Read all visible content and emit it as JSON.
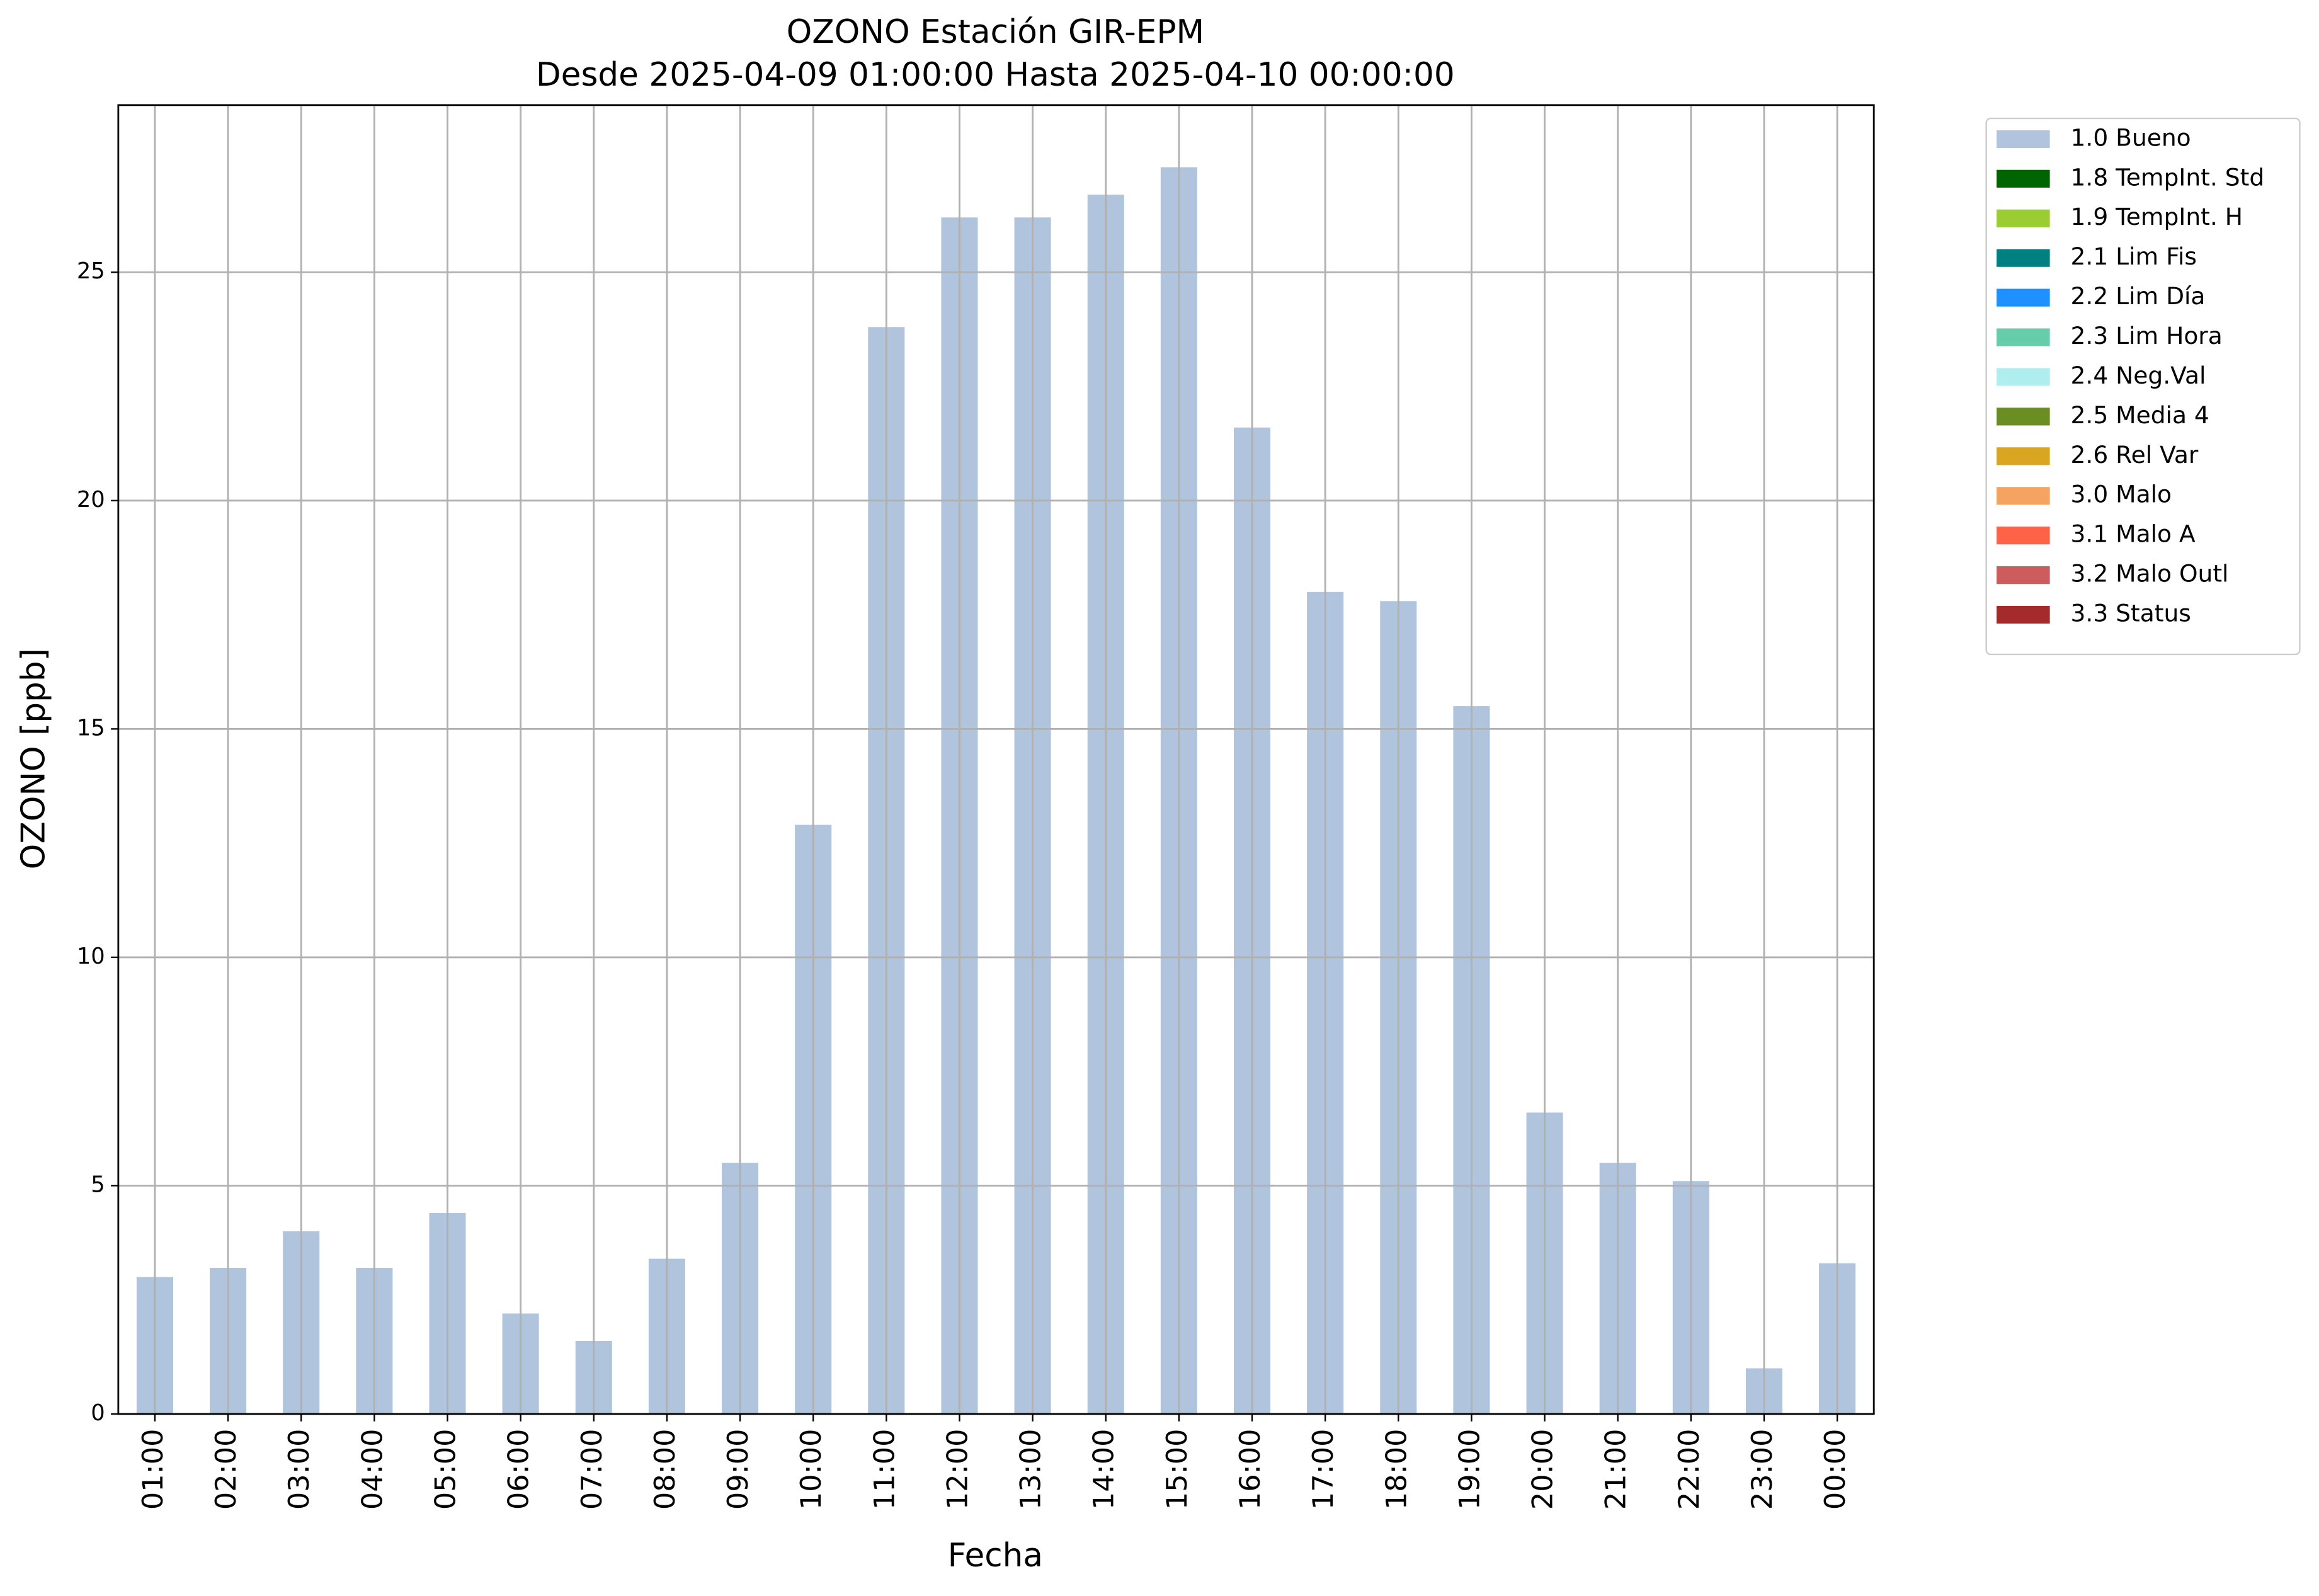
{
  "chart_data": {
    "type": "bar",
    "stacked": true,
    "title": "OZONO Estación GIR-EPM",
    "subtitle": "Desde 2025-04-09 01:00:00 Hasta 2025-04-10 00:00:00",
    "x_label": "Fecha",
    "y_label": "OZONO [ppb]",
    "categories": [
      "01:00",
      "02:00",
      "03:00",
      "04:00",
      "05:00",
      "06:00",
      "07:00",
      "08:00",
      "09:00",
      "10:00",
      "11:00",
      "12:00",
      "13:00",
      "14:00",
      "15:00",
      "16:00",
      "17:00",
      "18:00",
      "19:00",
      "20:00",
      "21:00",
      "22:00",
      "23:00",
      "00:00"
    ],
    "series": [
      {
        "name": "1.0 Bueno",
        "color": "#b0c4de",
        "values": [
          3.0,
          3.2,
          4.0,
          3.2,
          4.4,
          2.2,
          1.6,
          3.4,
          5.5,
          12.9,
          23.8,
          26.2,
          26.2,
          26.7,
          27.3,
          21.6,
          18.0,
          17.8,
          15.5,
          6.6,
          5.5,
          5.1,
          1.0,
          3.3
        ]
      },
      {
        "name": "1.8 TempInt. Std",
        "color": "#006400",
        "values": [
          null,
          null,
          null,
          null,
          null,
          null,
          null,
          null,
          null,
          null,
          null,
          null,
          null,
          null,
          null,
          null,
          null,
          null,
          null,
          null,
          null,
          null,
          null,
          null
        ]
      },
      {
        "name": "1.9 TempInt. H",
        "color": "#9acd32",
        "values": [
          null,
          null,
          null,
          null,
          null,
          null,
          null,
          null,
          null,
          null,
          null,
          null,
          null,
          null,
          null,
          null,
          null,
          null,
          null,
          null,
          null,
          null,
          null,
          null
        ]
      },
      {
        "name": "2.1 Lim Fis",
        "color": "#008080",
        "values": [
          null,
          null,
          null,
          null,
          null,
          null,
          null,
          null,
          null,
          null,
          null,
          null,
          null,
          null,
          null,
          null,
          null,
          null,
          null,
          null,
          null,
          null,
          null,
          null
        ]
      },
      {
        "name": "2.2 Lim Día",
        "color": "#1e90ff",
        "values": [
          null,
          null,
          null,
          null,
          null,
          null,
          null,
          null,
          null,
          null,
          null,
          null,
          null,
          null,
          null,
          null,
          null,
          null,
          null,
          null,
          null,
          null,
          null,
          null
        ]
      },
      {
        "name": "2.3 Lim Hora",
        "color": "#66cdaa",
        "values": [
          null,
          null,
          null,
          null,
          null,
          null,
          null,
          null,
          null,
          null,
          null,
          null,
          null,
          null,
          null,
          null,
          null,
          null,
          null,
          null,
          null,
          null,
          null,
          null
        ]
      },
      {
        "name": "2.4 Neg.Val",
        "color": "#afeeee",
        "values": [
          null,
          null,
          null,
          null,
          null,
          null,
          null,
          null,
          null,
          null,
          null,
          null,
          null,
          null,
          null,
          null,
          null,
          null,
          null,
          null,
          null,
          null,
          null,
          null
        ]
      },
      {
        "name": "2.5 Media 4",
        "color": "#6b8e23",
        "values": [
          null,
          null,
          null,
          null,
          null,
          null,
          null,
          null,
          null,
          null,
          null,
          null,
          null,
          null,
          null,
          null,
          null,
          null,
          null,
          null,
          null,
          null,
          null,
          null
        ]
      },
      {
        "name": "2.6 Rel Var",
        "color": "#daa520",
        "values": [
          null,
          null,
          null,
          null,
          null,
          null,
          null,
          null,
          null,
          null,
          null,
          null,
          null,
          null,
          null,
          null,
          null,
          null,
          null,
          null,
          null,
          null,
          null,
          null
        ]
      },
      {
        "name": "3.0 Malo",
        "color": "#f4a460",
        "values": [
          null,
          null,
          null,
          null,
          null,
          null,
          null,
          null,
          null,
          null,
          null,
          null,
          null,
          null,
          null,
          null,
          null,
          null,
          null,
          null,
          null,
          null,
          null,
          null
        ]
      },
      {
        "name": "3.1 Malo A",
        "color": "#ff6347",
        "values": [
          null,
          null,
          null,
          null,
          null,
          null,
          null,
          null,
          null,
          null,
          null,
          null,
          null,
          null,
          null,
          null,
          null,
          null,
          null,
          null,
          null,
          null,
          null,
          null
        ]
      },
      {
        "name": "3.2 Malo Outl",
        "color": "#cd5c5c",
        "values": [
          null,
          null,
          null,
          null,
          null,
          null,
          null,
          null,
          null,
          null,
          null,
          null,
          null,
          null,
          null,
          null,
          null,
          null,
          null,
          null,
          null,
          null,
          null,
          null
        ]
      },
      {
        "name": "3.3 Status",
        "color": "#a52a2a",
        "values": [
          null,
          null,
          null,
          null,
          null,
          null,
          null,
          null,
          null,
          null,
          null,
          null,
          null,
          null,
          null,
          null,
          null,
          null,
          null,
          null,
          null,
          null,
          null,
          null
        ]
      }
    ],
    "ylim": [
      0,
      28.66
    ],
    "yticks": [
      0,
      5,
      10,
      15,
      20,
      25
    ],
    "grid": true,
    "legend": "outside-upper-right"
  }
}
